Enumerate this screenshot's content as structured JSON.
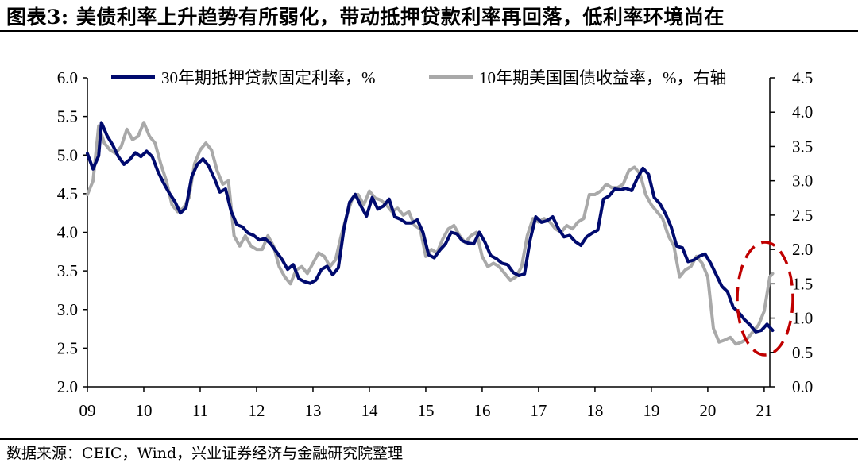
{
  "title": "图表3: 美债利率上升趋势有所弱化，带动抵押贷款利率再回落，低利率环境尚在",
  "source": "数据来源：CEIC，Wind，兴业证券经济与金融研究院整理",
  "colors": {
    "series1": "#000a6e",
    "series2": "#a9a9a9",
    "highlight": "#c00000",
    "axis": "#000000"
  },
  "chart_data": {
    "type": "line",
    "title": "",
    "x_ticks": [
      "09",
      "10",
      "11",
      "12",
      "13",
      "14",
      "15",
      "16",
      "17",
      "18",
      "19",
      "20",
      "21"
    ],
    "y_left": {
      "ticks": [
        "2.0",
        "2.5",
        "3.0",
        "3.5",
        "4.0",
        "4.5",
        "5.0",
        "5.5",
        "6.0"
      ],
      "ylim": [
        2.0,
        6.0
      ]
    },
    "y_right": {
      "ticks": [
        "0.0",
        "0.5",
        "1.0",
        "1.5",
        "2.0",
        "2.5",
        "3.0",
        "3.5",
        "4.0",
        "4.5"
      ],
      "ylim": [
        0.0,
        4.5
      ]
    },
    "grid": false,
    "legend_position": "top",
    "annotation": "dashed red ellipse around 2020-2021 rebound",
    "series": [
      {
        "name": "30年期抵押贷款固定利率，%",
        "axis": "left",
        "x": [
          2009.0,
          2009.1,
          2009.2,
          2009.25,
          2009.35,
          2009.45,
          2009.55,
          2009.65,
          2009.75,
          2009.85,
          2009.95,
          2010.05,
          2010.15,
          2010.25,
          2010.35,
          2010.45,
          2010.55,
          2010.65,
          2010.75,
          2010.85,
          2010.95,
          2011.05,
          2011.15,
          2011.25,
          2011.35,
          2011.45,
          2011.55,
          2011.65,
          2011.75,
          2011.85,
          2011.95,
          2012.05,
          2012.15,
          2012.25,
          2012.35,
          2012.45,
          2012.55,
          2012.65,
          2012.75,
          2012.85,
          2012.95,
          2013.05,
          2013.15,
          2013.25,
          2013.35,
          2013.45,
          2013.55,
          2013.65,
          2013.75,
          2013.85,
          2013.95,
          2014.05,
          2014.15,
          2014.25,
          2014.35,
          2014.45,
          2014.55,
          2014.65,
          2014.75,
          2014.85,
          2014.95,
          2015.05,
          2015.15,
          2015.25,
          2015.35,
          2015.45,
          2015.55,
          2015.65,
          2015.75,
          2015.85,
          2015.95,
          2016.05,
          2016.15,
          2016.25,
          2016.35,
          2016.45,
          2016.55,
          2016.65,
          2016.75,
          2016.85,
          2016.95,
          2017.05,
          2017.15,
          2017.25,
          2017.35,
          2017.45,
          2017.55,
          2017.65,
          2017.75,
          2017.85,
          2017.95,
          2018.05,
          2018.15,
          2018.25,
          2018.35,
          2018.45,
          2018.55,
          2018.65,
          2018.75,
          2018.85,
          2018.95,
          2019.05,
          2019.15,
          2019.25,
          2019.35,
          2019.45,
          2019.55,
          2019.65,
          2019.75,
          2019.85,
          2019.95,
          2020.05,
          2020.15,
          2020.25,
          2020.35,
          2020.45,
          2020.55,
          2020.65,
          2020.75,
          2020.85,
          2020.95,
          2021.05,
          2021.15
        ],
        "values": [
          5.02,
          4.82,
          4.99,
          5.42,
          5.25,
          5.13,
          4.98,
          4.88,
          4.94,
          5.03,
          4.98,
          5.05,
          4.98,
          4.79,
          4.64,
          4.51,
          4.4,
          4.25,
          4.32,
          4.72,
          4.88,
          4.95,
          4.86,
          4.7,
          4.52,
          4.56,
          4.27,
          4.1,
          4.07,
          3.99,
          3.96,
          3.9,
          3.92,
          3.85,
          3.75,
          3.65,
          3.52,
          3.58,
          3.4,
          3.36,
          3.34,
          3.38,
          3.52,
          3.56,
          3.45,
          3.54,
          4.05,
          4.39,
          4.49,
          4.34,
          4.21,
          4.45,
          4.3,
          4.34,
          4.43,
          4.2,
          4.17,
          4.12,
          4.12,
          4.16,
          4.0,
          3.71,
          3.67,
          3.77,
          3.85,
          4.0,
          3.98,
          3.89,
          3.86,
          3.85,
          4.0,
          3.87,
          3.7,
          3.66,
          3.6,
          3.58,
          3.48,
          3.44,
          3.46,
          3.9,
          4.2,
          4.13,
          4.15,
          4.2,
          4.05,
          3.94,
          3.96,
          3.88,
          3.83,
          3.94,
          3.99,
          4.03,
          4.43,
          4.47,
          4.56,
          4.55,
          4.57,
          4.54,
          4.7,
          4.83,
          4.75,
          4.45,
          4.37,
          4.24,
          4.07,
          3.82,
          3.8,
          3.62,
          3.64,
          3.69,
          3.72,
          3.6,
          3.45,
          3.3,
          3.23,
          3.03,
          2.96,
          2.87,
          2.8,
          2.71,
          2.73,
          2.81,
          2.73
        ],
        "note": "smoothed estimate"
      },
      {
        "name": "10年期美国国债收益率，%，右轴",
        "axis": "right",
        "x": [
          2009.0,
          2009.1,
          2009.2,
          2009.3,
          2009.4,
          2009.5,
          2009.6,
          2009.7,
          2009.8,
          2009.9,
          2010.0,
          2010.1,
          2010.2,
          2010.3,
          2010.4,
          2010.5,
          2010.6,
          2010.7,
          2010.8,
          2010.9,
          2011.0,
          2011.1,
          2011.2,
          2011.3,
          2011.4,
          2011.5,
          2011.6,
          2011.7,
          2011.8,
          2011.9,
          2012.0,
          2012.1,
          2012.2,
          2012.3,
          2012.4,
          2012.5,
          2012.6,
          2012.7,
          2012.8,
          2012.9,
          2013.0,
          2013.1,
          2013.2,
          2013.3,
          2013.4,
          2013.5,
          2013.6,
          2013.7,
          2013.8,
          2013.9,
          2014.0,
          2014.1,
          2014.2,
          2014.3,
          2014.4,
          2014.5,
          2014.6,
          2014.7,
          2014.8,
          2014.9,
          2015.0,
          2015.1,
          2015.2,
          2015.3,
          2015.4,
          2015.5,
          2015.6,
          2015.7,
          2015.8,
          2015.9,
          2016.0,
          2016.1,
          2016.2,
          2016.3,
          2016.4,
          2016.5,
          2016.6,
          2016.7,
          2016.8,
          2016.9,
          2017.0,
          2017.1,
          2017.2,
          2017.3,
          2017.4,
          2017.5,
          2017.6,
          2017.7,
          2017.8,
          2017.9,
          2018.0,
          2018.1,
          2018.2,
          2018.3,
          2018.4,
          2018.5,
          2018.6,
          2018.7,
          2018.8,
          2018.9,
          2019.0,
          2019.1,
          2019.2,
          2019.3,
          2019.4,
          2019.5,
          2019.6,
          2019.7,
          2019.8,
          2019.9,
          2020.0,
          2020.1,
          2020.2,
          2020.3,
          2020.4,
          2020.5,
          2020.6,
          2020.7,
          2020.8,
          2020.9,
          2021.0,
          2021.1,
          2021.15
        ],
        "values": [
          2.8,
          3.0,
          3.8,
          3.55,
          3.45,
          3.4,
          3.5,
          3.75,
          3.6,
          3.65,
          3.85,
          3.65,
          3.55,
          3.25,
          3.0,
          2.65,
          2.55,
          2.6,
          2.75,
          3.25,
          3.45,
          3.55,
          3.45,
          3.15,
          2.95,
          3.0,
          2.2,
          2.05,
          2.2,
          2.05,
          2.0,
          2.0,
          2.2,
          2.05,
          1.75,
          1.6,
          1.5,
          1.7,
          1.75,
          1.65,
          1.8,
          1.95,
          1.9,
          1.75,
          1.85,
          2.2,
          2.5,
          2.75,
          2.8,
          2.65,
          2.85,
          2.75,
          2.72,
          2.65,
          2.55,
          2.6,
          2.5,
          2.55,
          2.35,
          2.3,
          1.9,
          2.0,
          1.95,
          2.15,
          2.3,
          2.35,
          2.2,
          2.1,
          2.2,
          2.25,
          1.9,
          1.75,
          1.8,
          1.75,
          1.65,
          1.55,
          1.6,
          1.75,
          2.2,
          2.45,
          2.4,
          2.45,
          2.4,
          2.3,
          2.25,
          2.35,
          2.3,
          2.4,
          2.45,
          2.8,
          2.8,
          2.85,
          2.95,
          2.9,
          2.9,
          2.95,
          3.15,
          3.2,
          3.1,
          2.8,
          2.65,
          2.55,
          2.45,
          2.2,
          2.05,
          1.6,
          1.7,
          1.75,
          1.9,
          1.8,
          1.6,
          0.85,
          0.65,
          0.68,
          0.72,
          0.62,
          0.65,
          0.7,
          0.8,
          0.9,
          1.1,
          1.6,
          1.65
        ]
      }
    ]
  }
}
